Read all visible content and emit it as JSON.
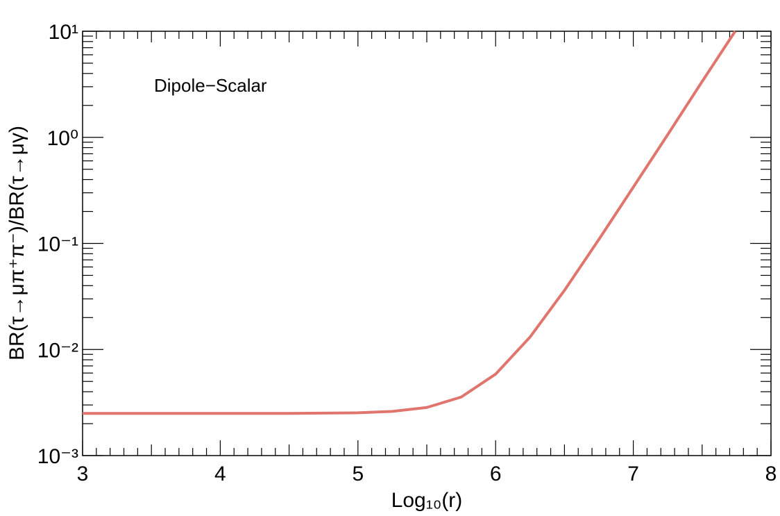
{
  "chart_data": {
    "type": "line",
    "annotation": "Dipole−Scalar",
    "x_label": "Log₁₀(r)",
    "y_label": "BR(τ→μπ⁺π⁻)/BR(τ→μγ)",
    "y_log": true,
    "x": [
      3,
      3.5,
      4,
      4.5,
      5,
      5.25,
      5.5,
      5.75,
      6,
      6.25,
      6.5,
      6.75,
      7,
      7.25,
      7.5,
      7.74
    ],
    "series": [
      {
        "color": "#e0756e",
        "values": [
          0.0025,
          0.0025,
          0.0025,
          0.0025,
          0.00253,
          0.00261,
          0.00284,
          0.00356,
          0.00586,
          0.0131,
          0.0361,
          0.109,
          0.339,
          1.06,
          3.36,
          10
        ]
      }
    ],
    "xlim": [
      3,
      8
    ],
    "xticks": [
      3,
      4,
      5,
      6,
      7,
      8
    ],
    "ylim": [
      0.001,
      10
    ],
    "yticks": [
      {
        "value": 0.001,
        "label": "10⁻³"
      },
      {
        "value": 0.01,
        "label": "10⁻²"
      },
      {
        "value": 0.1,
        "label": "10⁻¹"
      },
      {
        "value": 1,
        "label": "10⁰"
      },
      {
        "value": 10,
        "label": "10¹"
      }
    ]
  }
}
